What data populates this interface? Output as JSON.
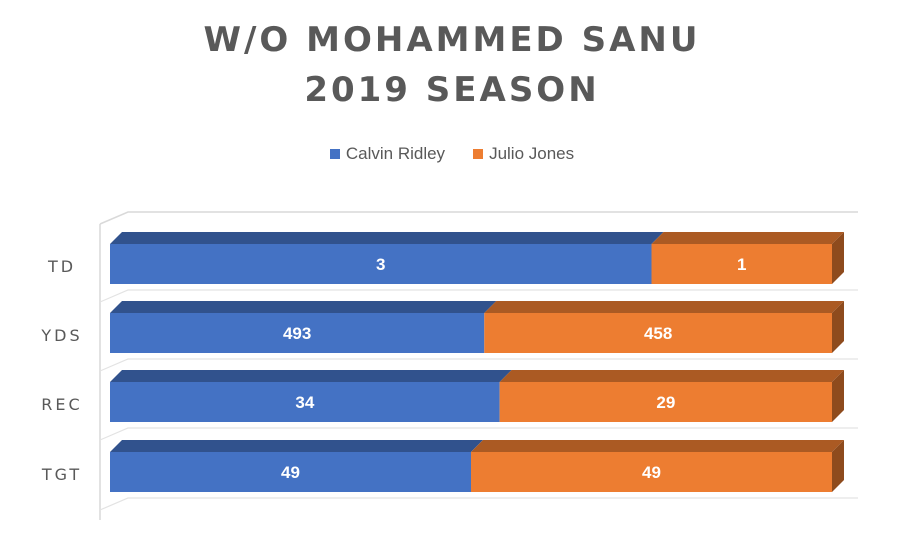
{
  "chart_data": {
    "type": "bar",
    "orientation": "horizontal-stacked-100",
    "title_lines": [
      "W/O MOHAMMED SANU",
      "2019 SEASON"
    ],
    "categories": [
      "TD",
      "YDS",
      "REC",
      "TGT"
    ],
    "series": [
      {
        "name": "Calvin Ridley",
        "values": [
          3,
          493,
          34,
          49
        ],
        "color": "#4472C4"
      },
      {
        "name": "Julio Jones",
        "values": [
          1,
          458,
          29,
          49
        ],
        "color": "#ED7D31"
      }
    ],
    "legend_position": "top",
    "data_labels": true,
    "grid": false,
    "style": "3d"
  }
}
